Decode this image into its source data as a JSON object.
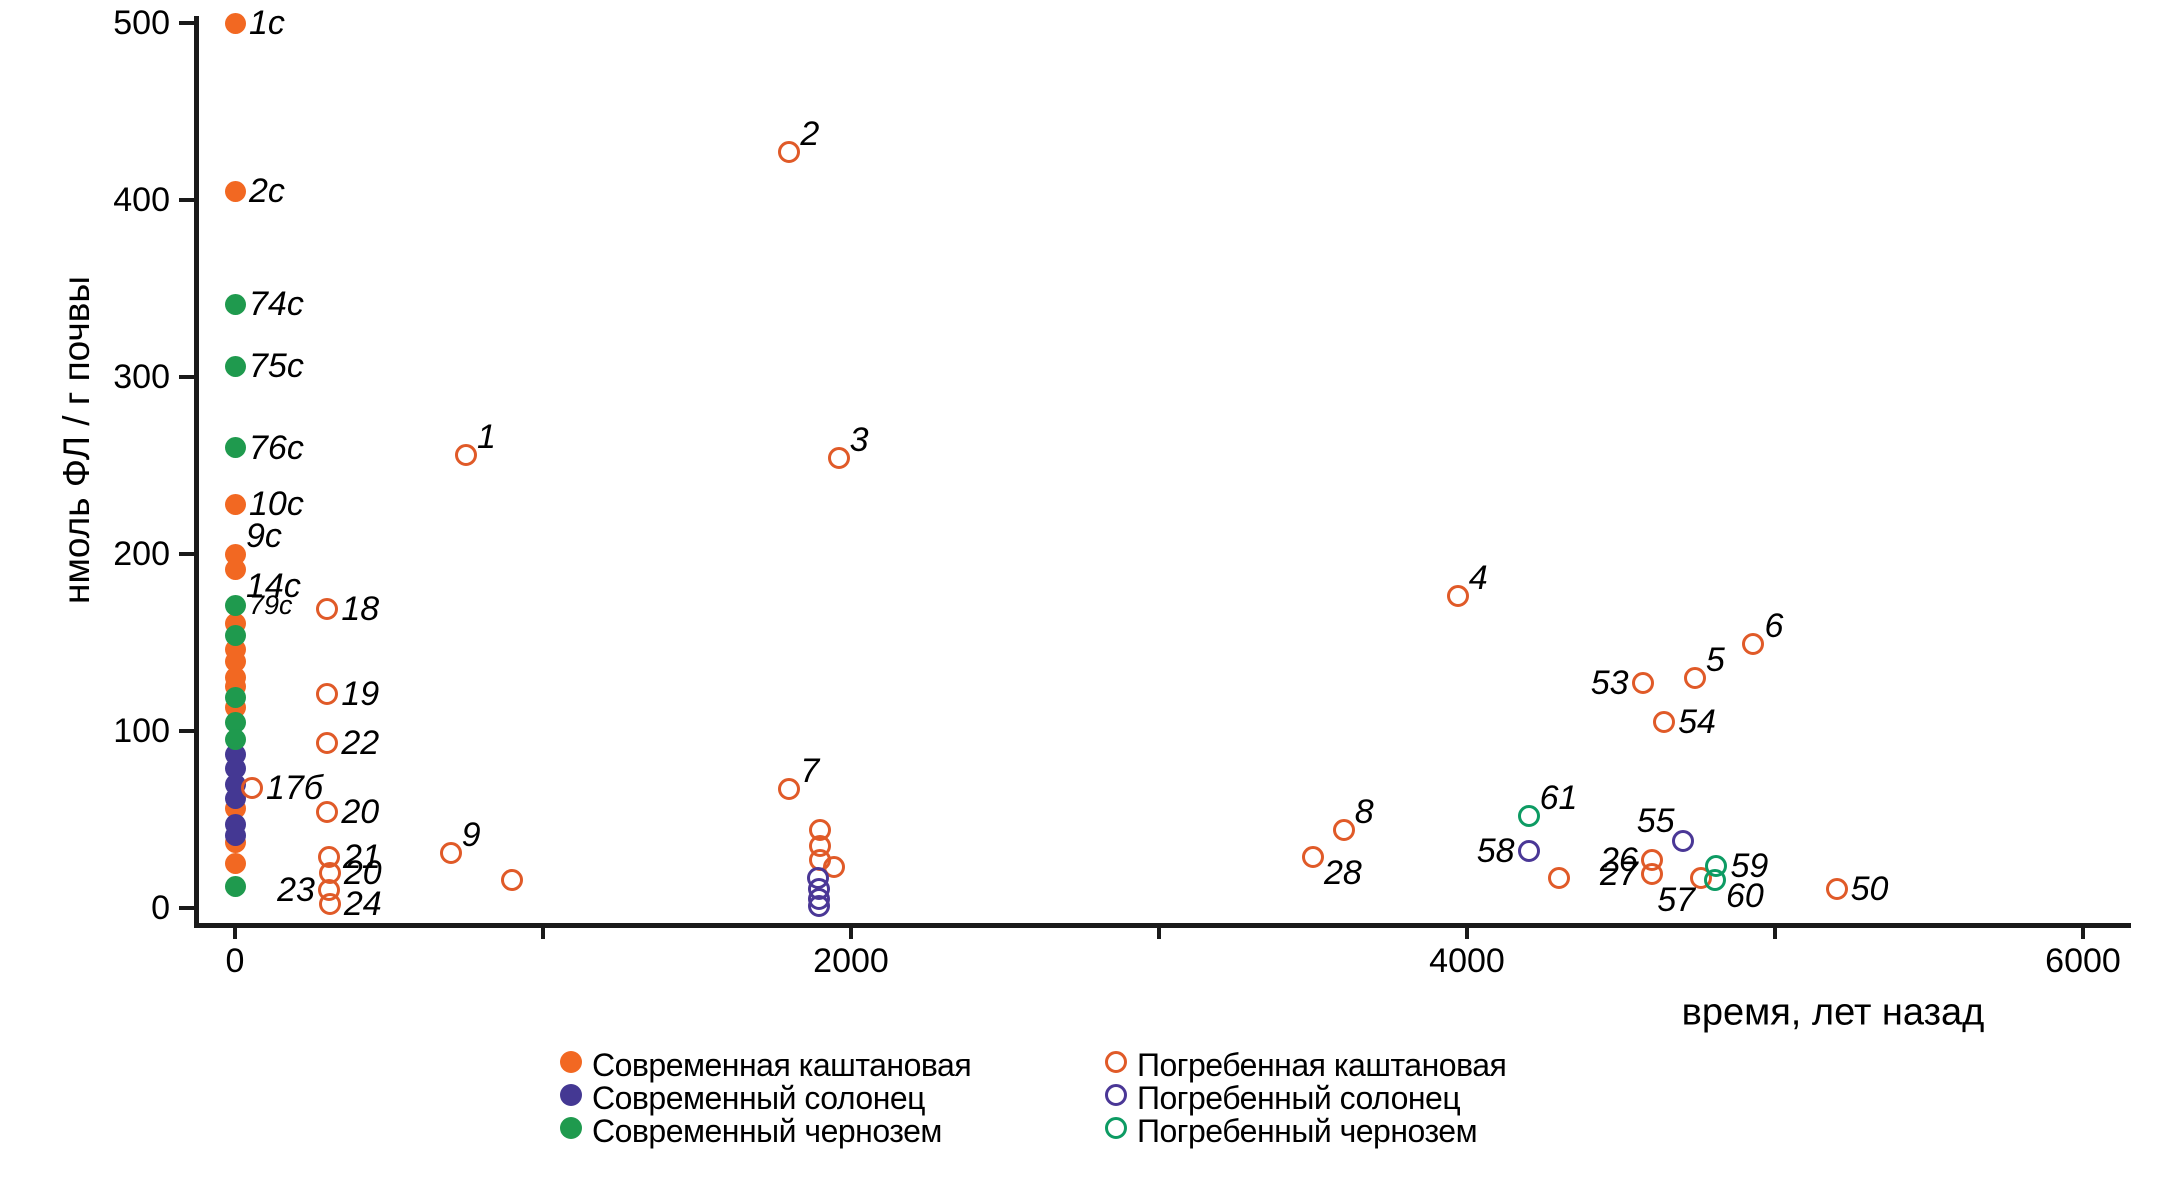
{
  "chart_data": {
    "type": "scatter",
    "title": "",
    "xlabel": "время, лет назад",
    "ylabel": "нмоль ФЛ / г почвы",
    "xlim": [
      0,
      6000
    ],
    "ylim": [
      0,
      500
    ],
    "grid": false,
    "legend_position": "bottom",
    "x_ticks": [
      0,
      1000,
      2000,
      3000,
      4000,
      5000,
      6000
    ],
    "x_labeled_ticks": [
      0,
      2000,
      4000,
      6000
    ],
    "y_ticks": [
      0,
      100,
      200,
      300,
      400,
      500
    ],
    "series": [
      {
        "name": "Современная каштановая",
        "marker": "filled",
        "color": "#F26822",
        "points": [
          {
            "t": 0,
            "v": 500,
            "label": "1с",
            "lp": "r"
          },
          {
            "t": 0,
            "v": 405,
            "label": "2с",
            "lp": "r"
          },
          {
            "t": 0,
            "v": 228,
            "label": "10с",
            "lp": "r"
          },
          {
            "t": 0,
            "v": 200,
            "label": "9с",
            "lp": "ru"
          },
          {
            "t": 0,
            "v": 191,
            "label": "14с",
            "lp": "rd"
          },
          {
            "t": 0,
            "v": 161
          },
          {
            "t": 0,
            "v": 146
          },
          {
            "t": 0,
            "v": 139
          },
          {
            "t": 0,
            "v": 130
          },
          {
            "t": 0,
            "v": 125
          },
          {
            "t": 0,
            "v": 113
          },
          {
            "t": 0,
            "v": 56
          },
          {
            "t": 0,
            "v": 37
          },
          {
            "t": 0,
            "v": 25
          }
        ]
      },
      {
        "name": "Современный солонец",
        "marker": "filled",
        "color": "#443893",
        "points": [
          {
            "t": 0,
            "v": 87
          },
          {
            "t": 0,
            "v": 79
          },
          {
            "t": 0,
            "v": 70
          },
          {
            "t": 0,
            "v": 62
          },
          {
            "t": 0,
            "v": 47
          },
          {
            "t": 0,
            "v": 41
          }
        ]
      },
      {
        "name": "Современный чернозем",
        "marker": "filled",
        "color": "#1F9A4E",
        "points": [
          {
            "t": 0,
            "v": 341,
            "label": "74с",
            "lp": "r"
          },
          {
            "t": 0,
            "v": 306,
            "label": "75с",
            "lp": "r"
          },
          {
            "t": 0,
            "v": 260,
            "label": "76с",
            "lp": "r"
          },
          {
            "t": 0,
            "v": 171,
            "label": "79с",
            "lp": "r",
            "small": true
          },
          {
            "t": 0,
            "v": 154
          },
          {
            "t": 0,
            "v": 119
          },
          {
            "t": 0,
            "v": 105
          },
          {
            "t": 0,
            "v": 95
          },
          {
            "t": 0,
            "v": 12
          }
        ]
      },
      {
        "name": "Погребенная каштановая",
        "marker": "open",
        "color": "#E05A28",
        "points": [
          {
            "t": 750,
            "v": 256,
            "label": "1",
            "lp": "ru"
          },
          {
            "t": 1800,
            "v": 427,
            "label": "2",
            "lp": "ru"
          },
          {
            "t": 1960,
            "v": 254,
            "label": "3",
            "lp": "ru"
          },
          {
            "t": 3970,
            "v": 176,
            "label": "4",
            "lp": "ru"
          },
          {
            "t": 4740,
            "v": 130,
            "label": "5",
            "lp": "ru"
          },
          {
            "t": 4930,
            "v": 149,
            "label": "6",
            "lp": "ru"
          },
          {
            "t": 1800,
            "v": 67,
            "label": "7",
            "lp": "ru"
          },
          {
            "t": 3600,
            "v": 44,
            "label": "8",
            "lp": "ru"
          },
          {
            "t": 700,
            "v": 31,
            "label": "9",
            "lp": "ru"
          },
          {
            "t": 900,
            "v": 16
          },
          {
            "t": 300,
            "v": 169,
            "label": "18",
            "lp": "r"
          },
          {
            "t": 300,
            "v": 121,
            "label": "19",
            "lp": "r"
          },
          {
            "t": 300,
            "v": 93,
            "label": "22",
            "lp": "r"
          },
          {
            "t": 55,
            "v": 68,
            "label": "17б",
            "lp": "r"
          },
          {
            "t": 300,
            "v": 54,
            "label": "20",
            "lp": "r"
          },
          {
            "t": 305,
            "v": 29,
            "label": "21",
            "lp": "r"
          },
          {
            "t": 308,
            "v": 20,
            "label": "20",
            "lp": "r"
          },
          {
            "t": 305,
            "v": 10,
            "label": "23",
            "lp": "l"
          },
          {
            "t": 308,
            "v": 2,
            "label": "24",
            "lp": "r"
          },
          {
            "t": 1900,
            "v": 44
          },
          {
            "t": 1898,
            "v": 35
          },
          {
            "t": 1900,
            "v": 27
          },
          {
            "t": 1945,
            "v": 23
          },
          {
            "t": 3500,
            "v": 29,
            "label": "28",
            "lp": "rd"
          },
          {
            "t": 4600,
            "v": 27,
            "label": "26",
            "lp": "l"
          },
          {
            "t": 4600,
            "v": 19,
            "label": "27",
            "lp": "l"
          },
          {
            "t": 4300,
            "v": 17
          },
          {
            "t": 4760,
            "v": 17,
            "label": "57",
            "lp": "ld"
          },
          {
            "t": 4570,
            "v": 127,
            "label": "53",
            "lp": "l"
          },
          {
            "t": 4640,
            "v": 105,
            "label": "54",
            "lp": "r"
          },
          {
            "t": 5200,
            "v": 11,
            "label": "50",
            "lp": "r"
          }
        ]
      },
      {
        "name": "Погребенный солонец",
        "marker": "open",
        "color": "#4A3796",
        "points": [
          {
            "t": 4700,
            "v": 38,
            "label": "55",
            "lp": "lu"
          },
          {
            "t": 4200,
            "v": 32,
            "label": "58",
            "lp": "l"
          },
          {
            "t": 1893,
            "v": 17
          },
          {
            "t": 1896,
            "v": 11
          },
          {
            "t": 1896,
            "v": 5
          },
          {
            "t": 1896,
            "v": 1
          }
        ]
      },
      {
        "name": "Погребенный чернозем",
        "marker": "open",
        "color": "#0D9B63",
        "points": [
          {
            "t": 4200,
            "v": 52,
            "label": "61",
            "lp": "ru"
          },
          {
            "t": 4810,
            "v": 24,
            "label": "59",
            "lp": "r"
          },
          {
            "t": 4805,
            "v": 16,
            "label": "60",
            "lp": "rd"
          }
        ]
      }
    ]
  }
}
